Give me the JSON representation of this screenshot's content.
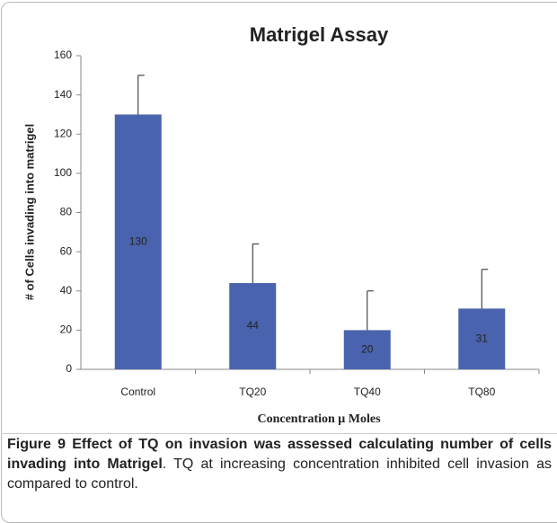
{
  "chart_data": {
    "type": "bar",
    "title": "Matrigel Assay",
    "categories": [
      "Control",
      "TQ20",
      "TQ40",
      "TQ80"
    ],
    "values": [
      130,
      44,
      20,
      31
    ],
    "errors": [
      20,
      20,
      20,
      20
    ],
    "color": "#4a63ae",
    "xlabel": "Concentration μ Moles",
    "ylabel": "# of Cells invading into matrigel",
    "ylim": [
      0,
      160
    ],
    "yticks": [
      0,
      20,
      40,
      60,
      80,
      100,
      120,
      140,
      160
    ],
    "grid": false
  },
  "caption": {
    "title": "Figure 9 Effect of TQ on invasion was assessed calculating number of cells invading into Matrigel",
    "text": ". TQ at increasing concentration inhibited cell invasion as compared to control."
  }
}
